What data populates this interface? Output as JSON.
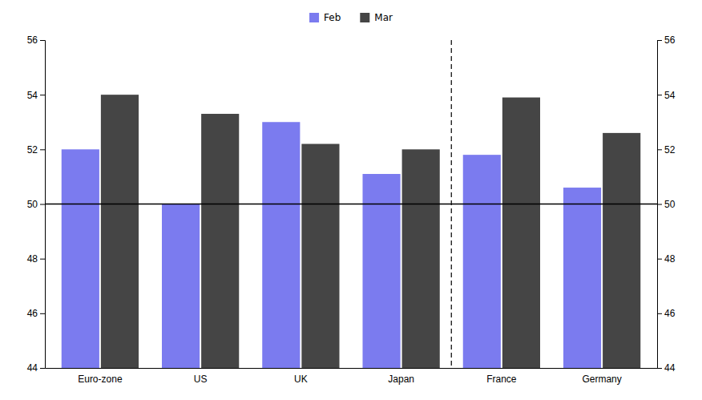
{
  "chart_data": {
    "type": "bar",
    "categories": [
      "Euro-zone",
      "US",
      "UK",
      "Japan",
      "France",
      "Germany"
    ],
    "series": [
      {
        "name": "Feb",
        "color": "#7b7bef",
        "values": [
          52.0,
          50.0,
          53.0,
          51.1,
          51.8,
          50.6
        ]
      },
      {
        "name": "Mar",
        "color": "#454545",
        "values": [
          54.0,
          53.3,
          52.2,
          52.0,
          53.9,
          52.6
        ]
      }
    ],
    "ylim": [
      44,
      56
    ],
    "yticks": [
      44,
      46,
      48,
      50,
      52,
      54,
      56
    ],
    "y2lim": [
      44,
      56
    ],
    "y2ticks": [
      44,
      46,
      48,
      50,
      52,
      54,
      56
    ],
    "reference_line": 50,
    "divider_between": [
      "Japan",
      "France"
    ],
    "legend": "top",
    "grid": false
  }
}
